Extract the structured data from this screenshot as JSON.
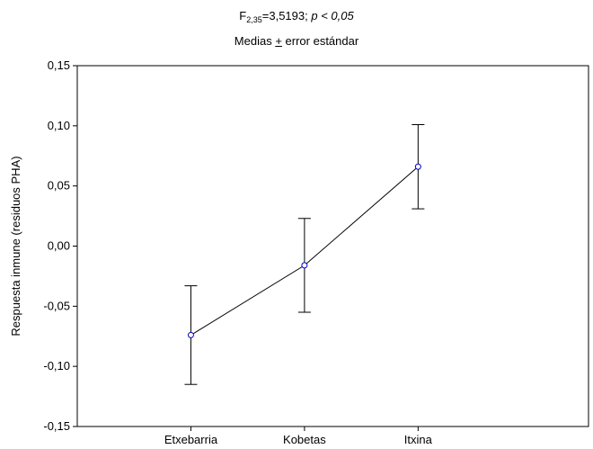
{
  "chart_data": {
    "type": "line",
    "title": {
      "main_prefix": "F",
      "main_subscript": "2,35",
      "main_stat": "=3,5193; ",
      "p_letter": "p",
      "p_rest": " < 0,05",
      "subtitle_prefix": "Medias ",
      "subtitle_pm": "+",
      "subtitle_suffix": " error estándar"
    },
    "xlabel": "",
    "ylabel": "Respuesta inmune (residuos PHA)",
    "categories": [
      "Etxebarria",
      "Kobetas",
      "Itxina"
    ],
    "series": [
      {
        "values": [
          -0.074,
          -0.016,
          0.066
        ],
        "lower": [
          -0.115,
          -0.055,
          0.031
        ],
        "upper": [
          -0.033,
          0.023,
          0.101
        ]
      }
    ],
    "ylim": [
      -0.15,
      0.15
    ],
    "yticks": [
      -0.15,
      -0.1,
      -0.05,
      0.0,
      0.05,
      0.1,
      0.15
    ],
    "ytick_labels": [
      "-0,15",
      "-0,10",
      "-0,05",
      "0,00",
      "0,05",
      "0,10",
      "0,15"
    ],
    "grid": false,
    "colors": {
      "line": "#000000",
      "marker_edge": "#0000cc",
      "marker_fill": "#ffffff"
    }
  }
}
